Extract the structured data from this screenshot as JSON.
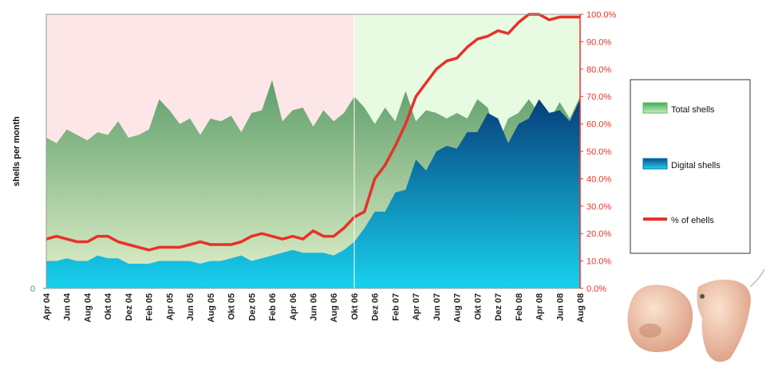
{
  "chart_data": {
    "type": "area-line",
    "y_axis_label": "shells per month",
    "categories": [
      "Apr 04",
      null,
      "Jun 04",
      null,
      "Aug 04",
      null,
      "Okt 04",
      null,
      "Dez 04",
      null,
      "Feb 05",
      null,
      "Apr 05",
      null,
      "Jun 05",
      null,
      "Aug 05",
      null,
      "Okt 05",
      null,
      "Dez 05",
      null,
      "Feb 06",
      null,
      "Apr 06",
      null,
      "Jun 06",
      null,
      "Aug 06",
      null,
      "Okt 06",
      null,
      "Dez 06",
      null,
      "Feb 07",
      null,
      "Apr 07",
      null,
      "Jun 07",
      null,
      "Aug 07",
      null,
      "Okt 07",
      null,
      "Dez 07",
      null,
      "Feb 08",
      null,
      "Apr 08",
      null,
      "Jun 08",
      null,
      "Aug 08"
    ],
    "ylim": [
      0,
      100
    ],
    "yticks": [
      0
    ],
    "y2lim": [
      0,
      100
    ],
    "y2ticks": [
      {
        "value": 0,
        "label": "0.0%"
      },
      {
        "value": 10,
        "label": "10.0%"
      },
      {
        "value": 20,
        "label": "20.0%"
      },
      {
        "value": 30,
        "label": "30.0%"
      },
      {
        "value": 40,
        "label": "40.0%"
      },
      {
        "value": 50,
        "label": "50.0%"
      },
      {
        "value": 60,
        "label": "60.0%"
      },
      {
        "value": 70,
        "label": "70.0%"
      },
      {
        "value": 80,
        "label": "80.0%"
      },
      {
        "value": 90,
        "label": "90.0%"
      },
      {
        "value": 100,
        "label": "100.0%"
      }
    ],
    "series": [
      {
        "name": "Total shells",
        "color": "#5cb85c",
        "kind": "area",
        "values": [
          55,
          53,
          58,
          56,
          54,
          57,
          56,
          61,
          55,
          56,
          58,
          69,
          65,
          60,
          62,
          56,
          62,
          61,
          63,
          57,
          64,
          65,
          76,
          61,
          65,
          66,
          59,
          65,
          61,
          64,
          70,
          66,
          60,
          66,
          61,
          72,
          61,
          65,
          64,
          62,
          64,
          62,
          69,
          66,
          53,
          62,
          64,
          69,
          64,
          61,
          68,
          62,
          70
        ]
      },
      {
        "name": "Digital shells",
        "color": "#0a6fb0",
        "kind": "area",
        "values": [
          10,
          10,
          11,
          10,
          10,
          12,
          11,
          11,
          9,
          9,
          9,
          10,
          10,
          10,
          10,
          9,
          10,
          10,
          11,
          12,
          10,
          11,
          12,
          13,
          14,
          13,
          13,
          13,
          12,
          14,
          17,
          22,
          28,
          28,
          35,
          36,
          47,
          43,
          50,
          52,
          51,
          57,
          57,
          64,
          62,
          53,
          60,
          62,
          69,
          64,
          65,
          61,
          69
        ]
      },
      {
        "name": "% of ehells",
        "color": "#e8312a",
        "kind": "line",
        "axis": "y2",
        "values": [
          18,
          19,
          18,
          17,
          17,
          19,
          19,
          17,
          16,
          15,
          14,
          15,
          15,
          15,
          16,
          17,
          16,
          16,
          16,
          17,
          19,
          20,
          19,
          18,
          19,
          18,
          21,
          19,
          19,
          22,
          26,
          28,
          40,
          45,
          52,
          60,
          70,
          75,
          80,
          83,
          84,
          88,
          91,
          92,
          94,
          93,
          97,
          100,
          100,
          98,
          99,
          99,
          99
        ]
      }
    ]
  }
}
